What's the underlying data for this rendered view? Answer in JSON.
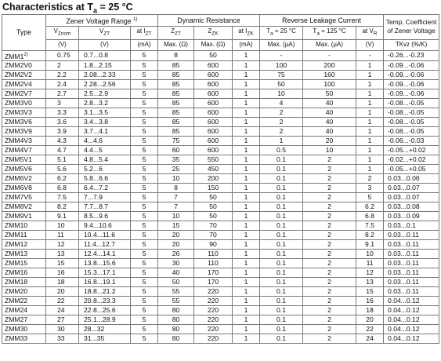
{
  "title": "Characteristics at T",
  "title_sub": "a",
  "title_rest": " = 25 °C",
  "header": {
    "type": "Type",
    "zener_range": "Zener Voltage Range",
    "zener_range_note": "1)",
    "dynamic": "Dynamic Resistance",
    "leakage": "Reverse Leakage Current",
    "coef": "Temp. Coefficient of Zener Voltage",
    "v_znom": "V",
    "v_znom_sub": "Znom",
    "v_zt": "V",
    "v_zt_sub": "ZT",
    "at_izt": "at I",
    "at_izt_sub": "ZT",
    "z_zt": "Z",
    "z_zt_sub": "ZT",
    "z_zk": "Z",
    "z_zk_sub": "ZK",
    "at_izk": "at I",
    "at_izk_sub": "ZK",
    "ta25": "T",
    "ta25_sub": "a",
    "ta25_rest": " = 25 °C",
    "ta125": "T",
    "ta125_sub": "a",
    "ta125_rest": " = 125 °C",
    "at_vr": "at V",
    "at_vr_sub": "R",
    "u_v1": "(V)",
    "u_v2": "(V)",
    "u_ma1": "(mA)",
    "u_max_ohm1": "Max. (Ω)",
    "u_max_ohm2": "Max. (Ω)",
    "u_ma2": "(mA)",
    "u_max_ua1": "Max. (µA)",
    "u_max_ua2": "Max. (µA)",
    "u_v3": "(V)",
    "u_tk": "TKvz (%/K)"
  },
  "rows": [
    [
      "ZMM1",
      "0.75",
      "0.7...0.8",
      "5",
      "8",
      "50",
      "1",
      "-",
      "-",
      "-",
      "-0.26...-0.23"
    ],
    [
      "ZMM2V0",
      "2",
      "1.8...2.15",
      "5",
      "85",
      "600",
      "1",
      "100",
      "200",
      "1",
      "-0.09...-0.06"
    ],
    [
      "ZMM2V2",
      "2.2",
      "2.08...2.33",
      "5",
      "85",
      "600",
      "1",
      "75",
      "160",
      "1",
      "-0.09...-0.06"
    ],
    [
      "ZMM2V4",
      "2.4",
      "2.28...2.56",
      "5",
      "85",
      "600",
      "1",
      "50",
      "100",
      "1",
      "-0.09...-0.06"
    ],
    [
      "ZMM2V7",
      "2.7",
      "2.5...2.9",
      "5",
      "85",
      "600",
      "1",
      "10",
      "50",
      "1",
      "-0.09...-0.06"
    ],
    [
      "ZMM3V0",
      "3",
      "2.8...3.2",
      "5",
      "85",
      "600",
      "1",
      "4",
      "40",
      "1",
      "-0.08...-0.05"
    ],
    [
      "ZMM3V3",
      "3.3",
      "3.1...3.5",
      "5",
      "85",
      "600",
      "1",
      "2",
      "40",
      "1",
      "-0.08...-0.05"
    ],
    [
      "ZMM3V6",
      "3.6",
      "3.4...3.8",
      "5",
      "85",
      "600",
      "1",
      "2",
      "40",
      "1",
      "-0.08...-0.05"
    ],
    [
      "ZMM3V9",
      "3.9",
      "3.7...4.1",
      "5",
      "85",
      "600",
      "1",
      "2",
      "40",
      "1",
      "-0.08...-0.05"
    ],
    [
      "ZMM4V3",
      "4.3",
      "4...4.6",
      "5",
      "75",
      "600",
      "1",
      "1",
      "20",
      "1",
      "-0.06...-0.03"
    ],
    [
      "ZMM4V7",
      "4.7",
      "4.4...5",
      "5",
      "60",
      "600",
      "1",
      "0.5",
      "10",
      "1",
      "-0.05...+0.02"
    ],
    [
      "ZMM5V1",
      "5.1",
      "4.8...5.4",
      "5",
      "35",
      "550",
      "1",
      "0.1",
      "2",
      "1",
      "-0.02...+0.02"
    ],
    [
      "ZMM5V6",
      "5.6",
      "5.2...6",
      "5",
      "25",
      "450",
      "1",
      "0.1",
      "2",
      "1",
      "-0.05...+0.05"
    ],
    [
      "ZMM6V2",
      "6.2",
      "5.8...6.6",
      "5",
      "10",
      "200",
      "1",
      "0.1",
      "2",
      "2",
      "0.03...0.06"
    ],
    [
      "ZMM6V8",
      "6.8",
      "6.4...7.2",
      "5",
      "8",
      "150",
      "1",
      "0.1",
      "2",
      "3",
      "0.03...0.07"
    ],
    [
      "ZMM7V5",
      "7.5",
      "7...7.9",
      "5",
      "7",
      "50",
      "1",
      "0.1",
      "2",
      "5",
      "0.03...0.07"
    ],
    [
      "ZMM8V2",
      "8.2",
      "7.7...8.7",
      "5",
      "7",
      "50",
      "1",
      "0.1",
      "2",
      "6.2",
      "0.03...0.08"
    ],
    [
      "ZMM9V1",
      "9.1",
      "8.5...9.6",
      "5",
      "10",
      "50",
      "1",
      "0.1",
      "2",
      "6.8",
      "0.03...0.09"
    ],
    [
      "ZMM10",
      "10",
      "9.4...10.6",
      "5",
      "15",
      "70",
      "1",
      "0.1",
      "2",
      "7.5",
      "0.03...0.1"
    ],
    [
      "ZMM11",
      "11",
      "10.4...11.6",
      "5",
      "20",
      "70",
      "1",
      "0.1",
      "2",
      "8.2",
      "0.03...0.11"
    ],
    [
      "ZMM12",
      "12",
      "11.4...12.7",
      "5",
      "20",
      "90",
      "1",
      "0.1",
      "2",
      "9.1",
      "0.03...0.11"
    ],
    [
      "ZMM13",
      "13",
      "12.4...14.1",
      "5",
      "26",
      "110",
      "1",
      "0.1",
      "2",
      "10",
      "0.03...0.11"
    ],
    [
      "ZMM15",
      "15",
      "13.8...15.6",
      "5",
      "30",
      "110",
      "1",
      "0.1",
      "2",
      "11",
      "0.03...0.11"
    ],
    [
      "ZMM16",
      "16",
      "15.3...17.1",
      "5",
      "40",
      "170",
      "1",
      "0.1",
      "2",
      "12",
      "0.03...0.11"
    ],
    [
      "ZMM18",
      "18",
      "16.8...19.1",
      "5",
      "50",
      "170",
      "1",
      "0.1",
      "2",
      "13",
      "0.03...0.11"
    ],
    [
      "ZMM20",
      "20",
      "18.8...21.2",
      "5",
      "55",
      "220",
      "1",
      "0.1",
      "2",
      "15",
      "0.03...0.11"
    ],
    [
      "ZMM22",
      "22",
      "20.8...23.3",
      "5",
      "55",
      "220",
      "1",
      "0.1",
      "2",
      "16",
      "0.04...0.12"
    ],
    [
      "ZMM24",
      "24",
      "22.8...25.6",
      "5",
      "80",
      "220",
      "1",
      "0.1",
      "2",
      "18",
      "0.04...0.12"
    ],
    [
      "ZMM27",
      "27",
      "25.1...28.9",
      "5",
      "80",
      "220",
      "1",
      "0.1",
      "2",
      "20",
      "0.04...0.12"
    ],
    [
      "ZMM30",
      "30",
      "28...32",
      "5",
      "80",
      "220",
      "1",
      "0.1",
      "2",
      "22",
      "0.04...0.12"
    ],
    [
      "ZMM33",
      "33",
      "31...35",
      "5",
      "80",
      "220",
      "1",
      "0.1",
      "2",
      "24",
      "0.04...0.12"
    ]
  ],
  "first_row_note": "2)"
}
